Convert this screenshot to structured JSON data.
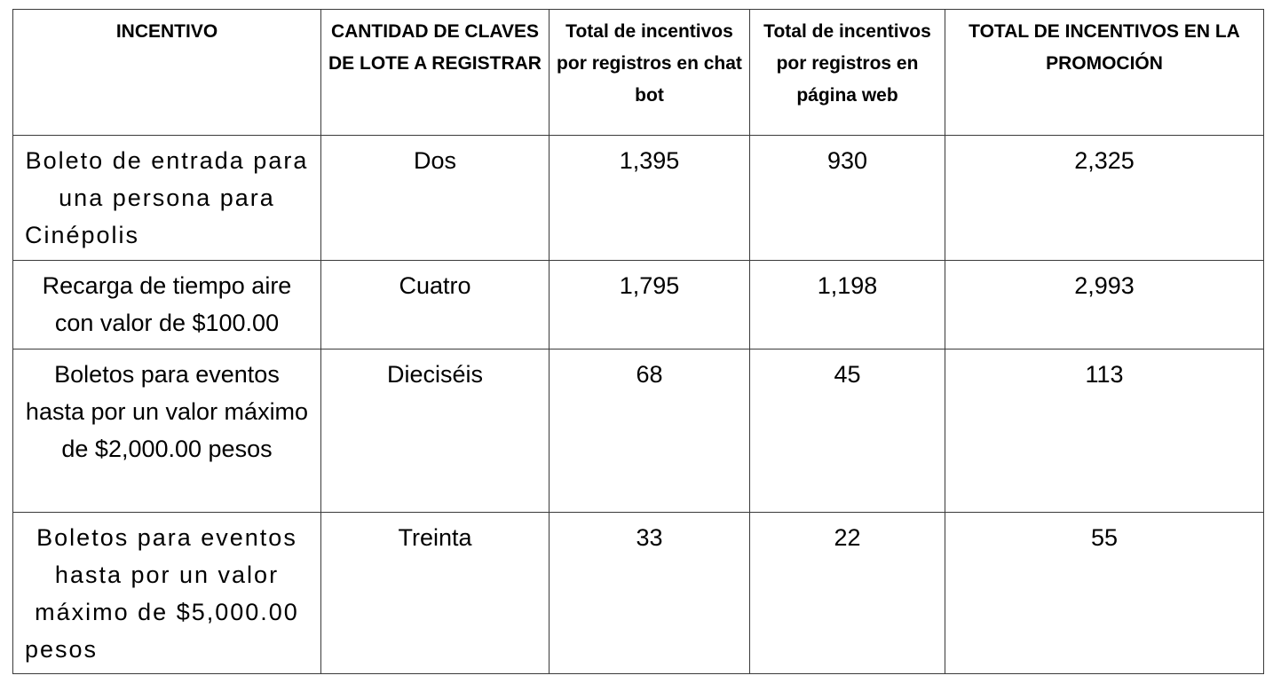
{
  "headers": [
    "INCENTIVO",
    "CANTIDAD DE CLAVES DE LOTE A REGISTRAR",
    "Total de incentivos por registros en chat bot",
    "Total de incentivos por registros en página web",
    "TOTAL DE INCENTIVOS EN LA PROMOCIÓN"
  ],
  "rows": [
    {
      "incentivo": "Boleto de entrada para una persona para Cinépolis",
      "cantidad": "Dos",
      "chat_bot": "1,395",
      "pagina_web": "930",
      "total": "2,325"
    },
    {
      "incentivo": "Recarga de tiempo aire con valor de $100.00",
      "cantidad": "Cuatro",
      "chat_bot": "1,795",
      "pagina_web": "1,198",
      "total": "2,993"
    },
    {
      "incentivo": "Boletos para eventos hasta por un valor máximo de $2,000.00 pesos",
      "cantidad": "Dieciséis",
      "chat_bot": "68",
      "pagina_web": "45",
      "total": "113"
    },
    {
      "incentivo": "Boletos para eventos hasta por un valor máximo de $5,000.00 pesos",
      "cantidad": "Treinta",
      "chat_bot": "33",
      "pagina_web": "22",
      "total": "55"
    }
  ]
}
